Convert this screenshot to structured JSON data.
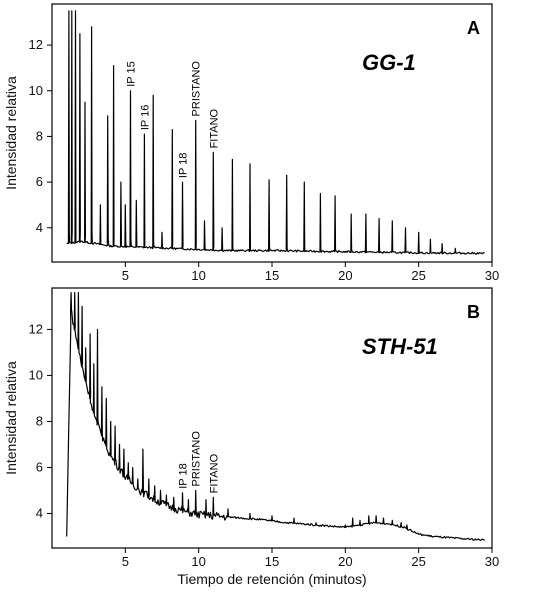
{
  "xlabel": "Tiempo de retención (minutos)",
  "chart_data": [
    {
      "type": "line",
      "panel_letter": "A",
      "sample": "GG-1",
      "ylabel": "Intensidad relativa",
      "xlim": [
        0,
        30
      ],
      "ylim": [
        2.5,
        13.8
      ],
      "x_ticks": [
        5,
        10,
        15,
        20,
        25,
        30
      ],
      "y_ticks": [
        4,
        6,
        8,
        10,
        12
      ],
      "baseline": [
        [
          1.0,
          3.3
        ],
        [
          2,
          3.4
        ],
        [
          4,
          3.2
        ],
        [
          6,
          3.15
        ],
        [
          8,
          3.1
        ],
        [
          10,
          3.05
        ],
        [
          12,
          3.0
        ],
        [
          15,
          3.0
        ],
        [
          20,
          2.95
        ],
        [
          25,
          2.9
        ],
        [
          29.5,
          2.88
        ]
      ],
      "peaks": [
        [
          1.15,
          13.5
        ],
        [
          1.35,
          13.5
        ],
        [
          1.6,
          13.5
        ],
        [
          1.9,
          12.5
        ],
        [
          2.25,
          9.5
        ],
        [
          2.7,
          12.8
        ],
        [
          3.3,
          5.0
        ],
        [
          3.8,
          8.9
        ],
        [
          4.2,
          11.1
        ],
        [
          4.7,
          6.0
        ],
        [
          5.0,
          5.0
        ],
        [
          5.35,
          10.0
        ],
        [
          5.75,
          5.2
        ],
        [
          6.3,
          8.1
        ],
        [
          6.9,
          9.8
        ],
        [
          7.5,
          3.8
        ],
        [
          8.2,
          8.3
        ],
        [
          8.9,
          6.0
        ],
        [
          9.8,
          8.7
        ],
        [
          10.4,
          4.3
        ],
        [
          11.0,
          7.3
        ],
        [
          11.6,
          4.0
        ],
        [
          12.3,
          7.0
        ],
        [
          13.5,
          6.8
        ],
        [
          14.8,
          6.1
        ],
        [
          16.0,
          6.3
        ],
        [
          17.2,
          6.0
        ],
        [
          18.3,
          5.5
        ],
        [
          19.3,
          5.4
        ],
        [
          20.4,
          4.6
        ],
        [
          21.4,
          4.6
        ],
        [
          22.3,
          4.4
        ],
        [
          23.2,
          4.3
        ],
        [
          24.1,
          4.0
        ],
        [
          25.0,
          3.8
        ],
        [
          25.8,
          3.5
        ],
        [
          26.6,
          3.3
        ],
        [
          27.5,
          3.1
        ]
      ],
      "annotations": [
        {
          "text": "IP 15",
          "x": 5.35
        },
        {
          "text": "IP 16",
          "x": 6.3
        },
        {
          "text": "IP 18",
          "x": 8.9
        },
        {
          "text": "PRISTANO",
          "x": 9.8
        },
        {
          "text": "FITANO",
          "x": 11.0
        }
      ]
    },
    {
      "type": "line",
      "panel_letter": "B",
      "sample": "STH-51",
      "ylabel": "Intensidad relativa",
      "xlim": [
        0,
        30
      ],
      "ylim": [
        2.5,
        13.8
      ],
      "x_ticks": [
        5,
        10,
        15,
        20,
        25,
        30
      ],
      "y_ticks": [
        4,
        6,
        8,
        10,
        12
      ],
      "baseline": [
        [
          1.0,
          3.0
        ],
        [
          1.3,
          12.8
        ],
        [
          2,
          10.5
        ],
        [
          3,
          8.0
        ],
        [
          4,
          6.5
        ],
        [
          5,
          5.6
        ],
        [
          6,
          5.0
        ],
        [
          7,
          4.6
        ],
        [
          8,
          4.3
        ],
        [
          9,
          4.1
        ],
        [
          10,
          3.95
        ],
        [
          11,
          3.9
        ],
        [
          12,
          3.85
        ],
        [
          14,
          3.75
        ],
        [
          16,
          3.6
        ],
        [
          18,
          3.5
        ],
        [
          20,
          3.4
        ],
        [
          21,
          3.5
        ],
        [
          22,
          3.6
        ],
        [
          23,
          3.55
        ],
        [
          24,
          3.4
        ],
        [
          25,
          3.1
        ],
        [
          26,
          3.0
        ],
        [
          28,
          2.9
        ],
        [
          29.5,
          2.85
        ]
      ],
      "peaks": [
        [
          1.3,
          13.6
        ],
        [
          1.55,
          13.6
        ],
        [
          1.8,
          13.6
        ],
        [
          2.05,
          13.0
        ],
        [
          2.3,
          11.2
        ],
        [
          2.6,
          11.8
        ],
        [
          2.85,
          10.5
        ],
        [
          3.1,
          12.0
        ],
        [
          3.4,
          9.5
        ],
        [
          3.7,
          9.0
        ],
        [
          4.0,
          8.0
        ],
        [
          4.3,
          7.8
        ],
        [
          4.6,
          7.0
        ],
        [
          4.9,
          6.8
        ],
        [
          5.2,
          6.2
        ],
        [
          5.5,
          6.0
        ],
        [
          5.85,
          5.5
        ],
        [
          6.2,
          6.8
        ],
        [
          6.6,
          5.5
        ],
        [
          7.0,
          5.2
        ],
        [
          7.4,
          5.0
        ],
        [
          7.8,
          4.8
        ],
        [
          8.3,
          4.7
        ],
        [
          8.9,
          4.9
        ],
        [
          9.3,
          4.6
        ],
        [
          9.8,
          5.0
        ],
        [
          10.5,
          4.6
        ],
        [
          11.0,
          4.7
        ],
        [
          12.0,
          4.2
        ],
        [
          13.5,
          4.0
        ],
        [
          15.0,
          3.9
        ],
        [
          16.5,
          3.8
        ],
        [
          18.0,
          3.6
        ],
        [
          20.0,
          3.5
        ],
        [
          20.5,
          3.8
        ],
        [
          21.0,
          3.7
        ],
        [
          21.6,
          3.9
        ],
        [
          22.1,
          3.9
        ],
        [
          22.6,
          3.8
        ],
        [
          23.2,
          3.7
        ],
        [
          23.8,
          3.6
        ],
        [
          24.2,
          3.5
        ]
      ],
      "annotations": [
        {
          "text": "IP 18",
          "x": 8.9
        },
        {
          "text": "PRISTANO",
          "x": 9.8
        },
        {
          "text": "FITANO",
          "x": 11.0
        }
      ]
    }
  ]
}
